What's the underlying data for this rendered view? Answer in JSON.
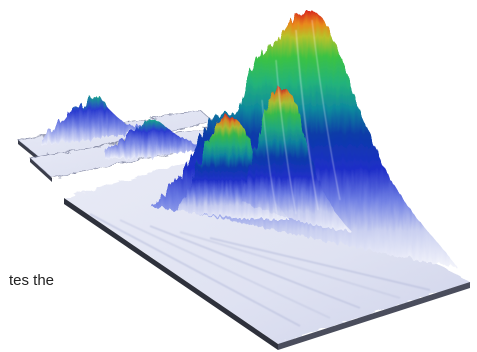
{
  "caption_fragment": "tes the",
  "chart_data": {
    "type": "surface",
    "title": "",
    "xlabel": "",
    "ylabel": "",
    "zlabel": "",
    "colorscale": [
      "#f5f6fb",
      "#c9cff0",
      "#6f7fe4",
      "#1f2ec8",
      "#0a3ba8",
      "#0f8a9c",
      "#23b37a",
      "#3bc244",
      "#b8c22a",
      "#e88a1a",
      "#d8281c"
    ],
    "slices": [
      {
        "name": "",
        "peak_height": 0.16
      },
      {
        "name": "",
        "peak_height": 0.12
      },
      {
        "name": "",
        "peak_height": 1.0
      }
    ]
  }
}
